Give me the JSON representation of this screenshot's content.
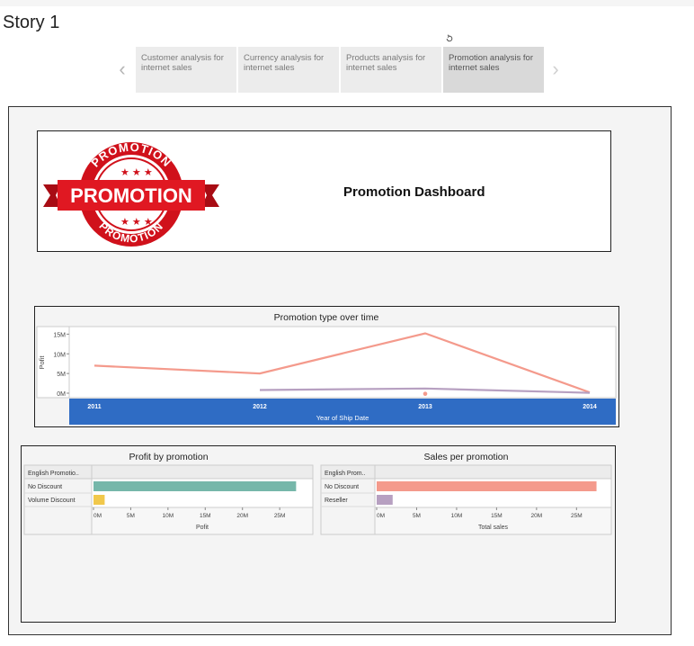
{
  "story": {
    "title": "Story 1",
    "tabs": [
      {
        "label": "Customer analysis for internet sales"
      },
      {
        "label": "Currency analysis for internet sales"
      },
      {
        "label": "Products analysis for internet sales"
      },
      {
        "label": "Promotion analysis for internet sales"
      }
    ],
    "active_tab": 3
  },
  "dashboard": {
    "title": "Promotion Dashboard",
    "logo": {
      "banner_text": "PROMOTION",
      "ring_text_top": "PROMOTION",
      "ring_text_bottom": "PROMOTION",
      "color": "#d0111b"
    }
  },
  "colors": {
    "accent_blue": "#2f6cc4",
    "teal": "#76b7aa",
    "yellow": "#f1c84b",
    "salmon": "#f49a8c",
    "purple": "#b7a0c1"
  },
  "chart_data": [
    {
      "type": "line",
      "title": "Promotion type over time",
      "xlabel": "Year of Ship Date",
      "ylabel": "Pofit",
      "x": [
        "2011",
        "2012",
        "2013",
        "2014"
      ],
      "yticks": [
        "0M",
        "5M",
        "10M",
        "15M"
      ],
      "ylim": [
        0,
        16
      ],
      "series": [
        {
          "color": "#f49a8c",
          "values": [
            7,
            5,
            15.2,
            0.2
          ]
        },
        {
          "color": "#b7a0c1",
          "values": [
            null,
            0.8,
            1.2,
            0.1
          ]
        }
      ],
      "markers": [
        {
          "x": "2013",
          "value": 0.3,
          "color": "#f49a8c"
        }
      ]
    },
    {
      "type": "bar",
      "title": "Profit by promotion",
      "header": "English Promotio..",
      "xlabel": "Pofit",
      "categories": [
        "No Discount",
        "Volume Discount"
      ],
      "values": [
        27.2,
        1.5
      ],
      "colors": [
        "#76b7aa",
        "#f1c84b"
      ],
      "xticks": [
        "0M",
        "5M",
        "10M",
        "15M",
        "20M",
        "25M"
      ],
      "xlim": [
        0,
        28
      ]
    },
    {
      "type": "bar",
      "title": "Sales per promotion",
      "header": "English Prom..",
      "xlabel": "Total sales",
      "categories": [
        "No Discount",
        "Reseller"
      ],
      "values": [
        27.5,
        2.0
      ],
      "colors": [
        "#f49a8c",
        "#b7a0c1"
      ],
      "xticks": [
        "0M",
        "5M",
        "10M",
        "15M",
        "20M",
        "25M"
      ],
      "xlim": [
        0,
        28
      ]
    }
  ]
}
